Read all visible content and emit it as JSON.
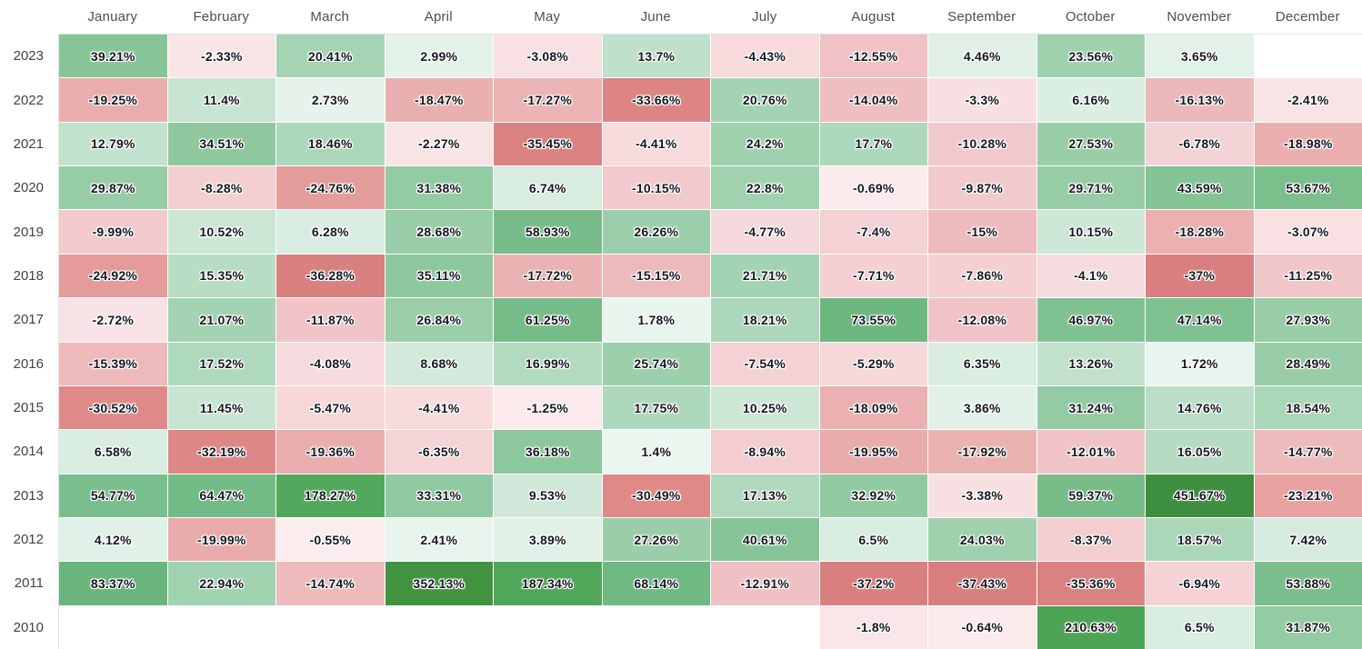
{
  "chart_data": {
    "type": "heatmap",
    "unit": "%",
    "x_labels": [
      "January",
      "February",
      "March",
      "April",
      "May",
      "June",
      "July",
      "August",
      "September",
      "October",
      "November",
      "December"
    ],
    "y_labels": [
      "2023",
      "2022",
      "2021",
      "2020",
      "2019",
      "2018",
      "2017",
      "2016",
      "2015",
      "2014",
      "2013",
      "2012",
      "2011",
      "2010"
    ],
    "rows": [
      {
        "year": "2023",
        "values": [
          39.21,
          -2.33,
          20.41,
          2.99,
          -3.08,
          13.7,
          -4.43,
          -12.55,
          4.46,
          23.56,
          3.65,
          null
        ]
      },
      {
        "year": "2022",
        "values": [
          -19.25,
          11.4,
          2.73,
          -18.47,
          -17.27,
          -33.66,
          20.76,
          -14.04,
          -3.3,
          6.16,
          -16.13,
          -2.41
        ]
      },
      {
        "year": "2021",
        "values": [
          12.79,
          34.51,
          18.46,
          -2.27,
          -35.45,
          -4.41,
          24.2,
          17.7,
          -10.28,
          27.53,
          -6.78,
          -18.98
        ]
      },
      {
        "year": "2020",
        "values": [
          29.87,
          -8.28,
          -24.76,
          31.38,
          6.74,
          -10.15,
          22.8,
          -0.69,
          -9.87,
          29.71,
          43.59,
          53.67
        ]
      },
      {
        "year": "2019",
        "values": [
          -9.99,
          10.52,
          6.28,
          28.68,
          58.93,
          26.26,
          -4.77,
          -7.4,
          -15,
          10.15,
          -18.28,
          -3.07
        ]
      },
      {
        "year": "2018",
        "values": [
          -24.92,
          15.35,
          -36.28,
          35.11,
          -17.72,
          -15.15,
          21.71,
          -7.71,
          -7.86,
          -4.1,
          -37,
          -11.25
        ]
      },
      {
        "year": "2017",
        "values": [
          -2.72,
          21.07,
          -11.87,
          26.84,
          61.25,
          1.78,
          18.21,
          73.55,
          -12.08,
          46.97,
          47.14,
          27.93
        ]
      },
      {
        "year": "2016",
        "values": [
          -15.39,
          17.52,
          -4.08,
          8.68,
          16.99,
          25.74,
          -7.54,
          -5.29,
          6.35,
          13.26,
          1.72,
          28.49
        ]
      },
      {
        "year": "2015",
        "values": [
          -30.52,
          11.45,
          -5.47,
          -4.41,
          -1.25,
          17.75,
          10.25,
          -18.09,
          3.86,
          31.24,
          14.76,
          18.54
        ]
      },
      {
        "year": "2014",
        "values": [
          6.58,
          -32.19,
          -19.36,
          -6.35,
          36.18,
          1.4,
          -8.94,
          -19.95,
          -17.92,
          -12.01,
          16.05,
          -14.77
        ]
      },
      {
        "year": "2013",
        "values": [
          54.77,
          64.47,
          178.27,
          33.31,
          9.53,
          -30.49,
          17.13,
          32.92,
          -3.38,
          59.37,
          451.67,
          -23.21
        ]
      },
      {
        "year": "2012",
        "values": [
          4.12,
          -19.99,
          -0.55,
          2.41,
          3.89,
          27.26,
          40.61,
          6.5,
          24.03,
          -8.37,
          18.57,
          7.42
        ]
      },
      {
        "year": "2011",
        "values": [
          83.37,
          22.94,
          -14.74,
          352.13,
          187.34,
          68.14,
          -12.91,
          -37.2,
          -37.43,
          -35.36,
          -6.94,
          53.88
        ]
      },
      {
        "year": "2010",
        "values": [
          null,
          null,
          null,
          null,
          null,
          null,
          null,
          -1.8,
          -0.64,
          210.63,
          6.5,
          31.87
        ]
      }
    ],
    "color_scale": {
      "positive_stops": [
        [
          0,
          "#eef8f2"
        ],
        [
          10,
          "#cee7d8"
        ],
        [
          20,
          "#a5d4b4"
        ],
        [
          40,
          "#86c497"
        ],
        [
          70,
          "#6eb882"
        ],
        [
          120,
          "#5aad6a"
        ],
        [
          200,
          "#4ea657"
        ],
        [
          300,
          "#449640"
        ],
        [
          500,
          "#3c8c40"
        ]
      ],
      "negative_stops": [
        [
          0,
          "#fceef0"
        ],
        [
          5,
          "#f6d8db"
        ],
        [
          12,
          "#f0c4c7"
        ],
        [
          20,
          "#e9abab"
        ],
        [
          30,
          "#df8b89"
        ],
        [
          40,
          "#d67a7a"
        ]
      ],
      "empty_cell": "#ffffff",
      "cell_gap": "#ffffff",
      "grid_border": "#e0e3eb",
      "value_text": "#15181f",
      "value_halo": "#ffffff",
      "axis_text": "#4c4f58"
    }
  }
}
